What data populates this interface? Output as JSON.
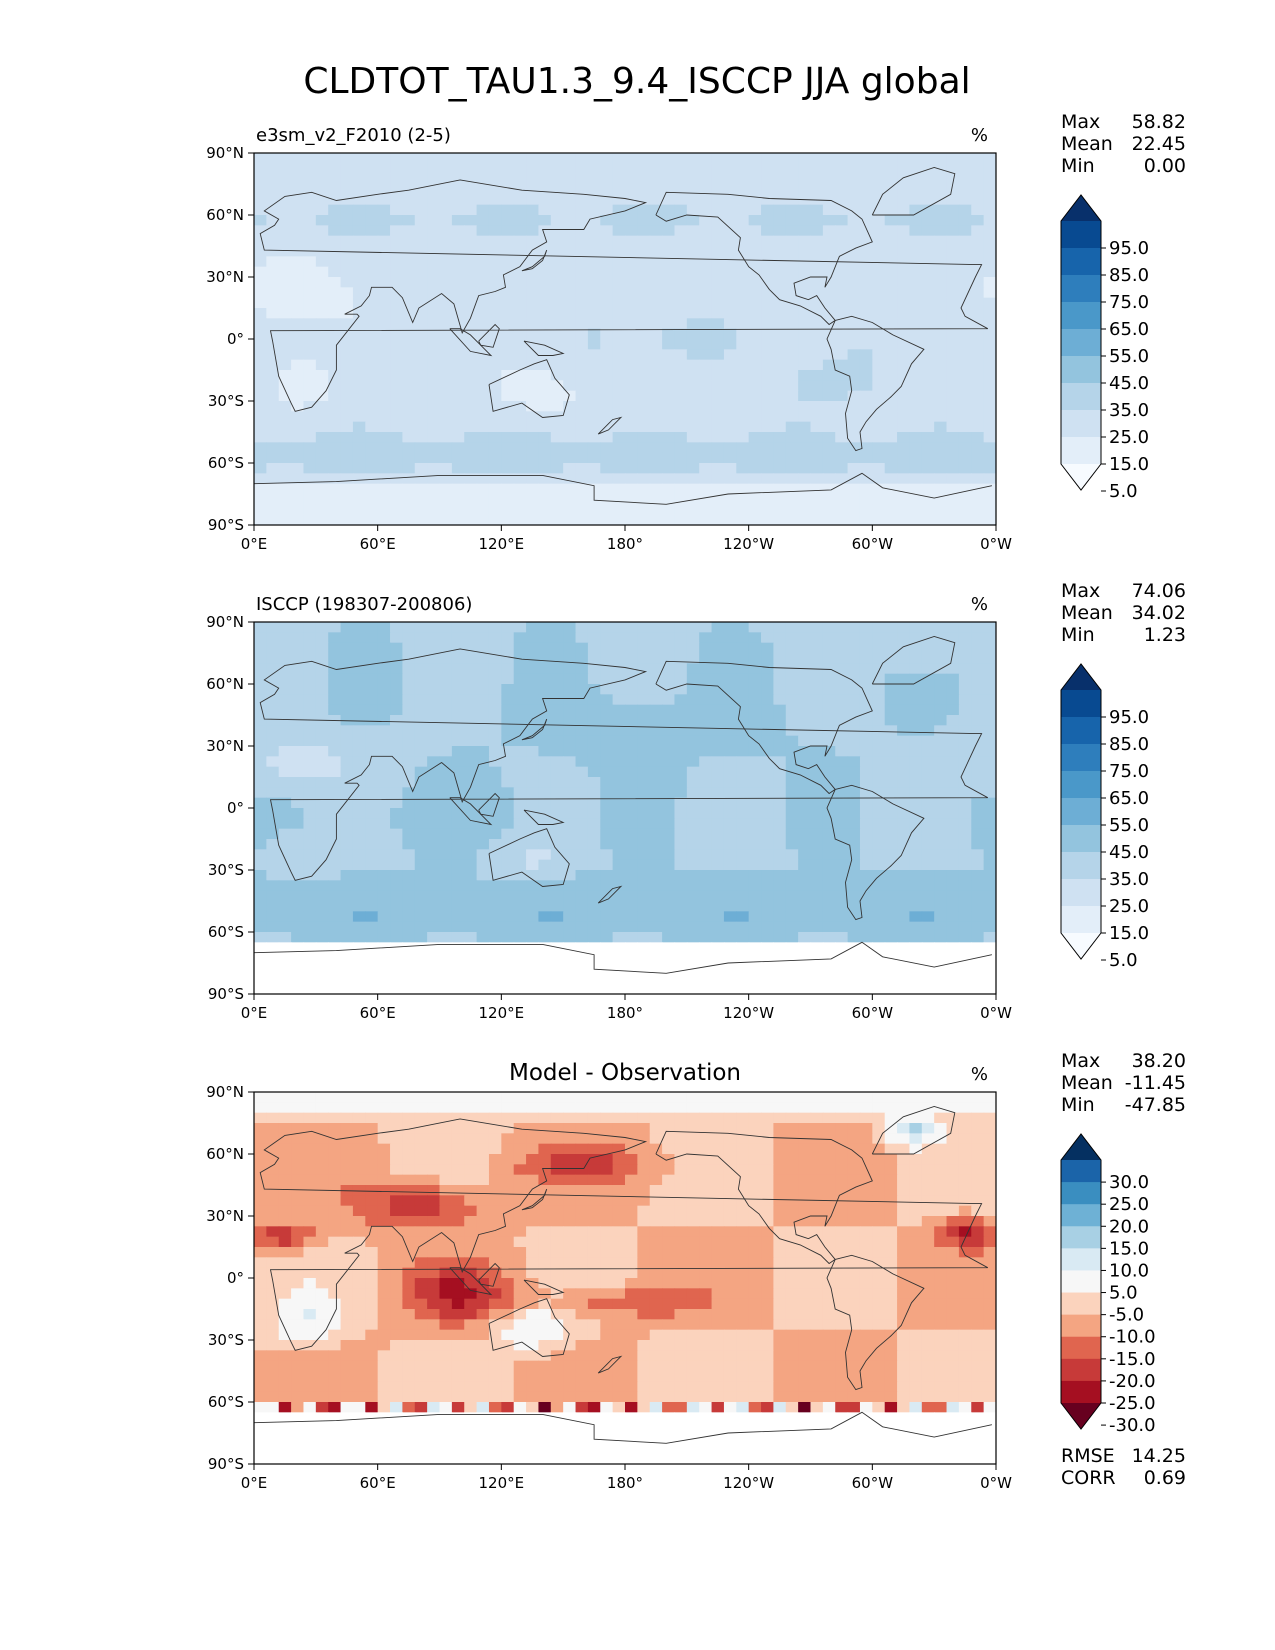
{
  "title": "CLDTOT_TAU1.3_9.4_ISCCP JJA global",
  "colors": {
    "blues": [
      "#f7fbff",
      "#e3eef9",
      "#cfe1f2",
      "#b5d4e9",
      "#93c4de",
      "#6daed5",
      "#4a98c9",
      "#2e7ebc",
      "#1764ab",
      "#084a91",
      "#08306b"
    ],
    "diff": [
      "#67001f",
      "#a50f21",
      "#c73a39",
      "#e0654f",
      "#f4a582",
      "#fbd3bd",
      "#f7f7f7",
      "#d9eaf3",
      "#a8d0e4",
      "#6eb1d5",
      "#3a8ec0",
      "#1b64a9",
      "#053061"
    ],
    "land_line": "#333333"
  },
  "chart_data": [
    {
      "type": "heatmap",
      "panel": "model",
      "title_left": "e3sm_v2_F2010 (2-5)",
      "title_center": "",
      "units": "%",
      "xlabel": "",
      "ylabel": "",
      "x_ticks": [
        "0°E",
        "60°E",
        "120°E",
        "180°",
        "120°W",
        "60°W",
        "0°W"
      ],
      "y_ticks": [
        "90°N",
        "60°N",
        "30°N",
        "0°",
        "30°S",
        "60°S",
        "90°S"
      ],
      "xlim": [
        0,
        360
      ],
      "ylim": [
        -90,
        90
      ],
      "stats": {
        "labels": [
          "Max",
          "Mean",
          "Min"
        ],
        "values": [
          "58.82",
          "22.45",
          "0.00"
        ]
      },
      "colorbar": {
        "labels": [
          "95.0",
          "85.0",
          "75.0",
          "65.0",
          "55.0",
          "45.0",
          "35.0",
          "25.0",
          "15.0",
          "5.0"
        ],
        "extend": "both"
      }
    },
    {
      "type": "heatmap",
      "panel": "observation",
      "title_left": "ISCCP (198307-200806)",
      "title_center": "",
      "units": "%",
      "x_ticks": [
        "0°E",
        "60°E",
        "120°E",
        "180°",
        "120°W",
        "60°W",
        "0°W"
      ],
      "y_ticks": [
        "90°N",
        "60°N",
        "30°N",
        "0°",
        "30°S",
        "60°S",
        "90°S"
      ],
      "xlim": [
        0,
        360
      ],
      "ylim": [
        -90,
        90
      ],
      "stats": {
        "labels": [
          "Max",
          "Mean",
          "Min"
        ],
        "values": [
          "74.06",
          "34.02",
          "1.23"
        ]
      },
      "colorbar": {
        "labels": [
          "95.0",
          "85.0",
          "75.0",
          "65.0",
          "55.0",
          "45.0",
          "35.0",
          "25.0",
          "15.0",
          "5.0"
        ],
        "extend": "both"
      }
    },
    {
      "type": "heatmap",
      "panel": "difference",
      "title_left": "",
      "title_center": "Model - Observation",
      "units": "%",
      "x_ticks": [
        "0°E",
        "60°E",
        "120°E",
        "180°",
        "120°W",
        "60°W",
        "0°W"
      ],
      "y_ticks": [
        "90°N",
        "60°N",
        "30°N",
        "0°",
        "30°S",
        "60°S",
        "90°S"
      ],
      "xlim": [
        0,
        360
      ],
      "ylim": [
        -90,
        90
      ],
      "stats": {
        "labels": [
          "Max",
          "Mean",
          "Min"
        ],
        "values": [
          "38.20",
          "-11.45",
          "-47.85"
        ]
      },
      "colorbar": {
        "labels": [
          "30.0",
          "25.0",
          "20.0",
          "15.0",
          "10.0",
          "5.0",
          "-5.0",
          "-10.0",
          "-15.0",
          "-20.0",
          "-25.0",
          "-30.0"
        ],
        "extend": "both"
      },
      "metrics": {
        "labels": [
          "RMSE",
          "CORR"
        ],
        "values": [
          "14.25",
          "0.69"
        ]
      }
    }
  ]
}
